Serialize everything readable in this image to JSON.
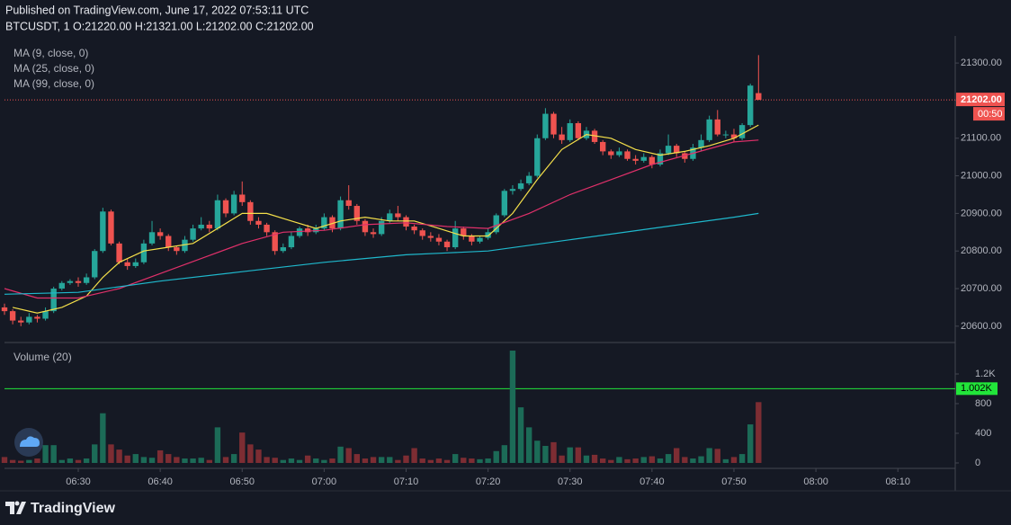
{
  "header": {
    "published": "Published on TradingView.com, June 17, 2022 07:53:11 UTC",
    "ohlc": "BTCUSDT, 1  O:21220.00 H:21321.00 L:21202.00 C:21202.00"
  },
  "footer": {
    "logo": "TradingView"
  },
  "chart_data": {
    "type": "candlestick",
    "x": [
      "06:21",
      "06:22",
      "06:23",
      "06:24",
      "06:25",
      "06:26",
      "06:27",
      "06:28",
      "06:29",
      "06:30",
      "06:31",
      "06:32",
      "06:33",
      "06:34",
      "06:35",
      "06:36",
      "06:37",
      "06:38",
      "06:39",
      "06:40",
      "06:41",
      "06:42",
      "06:43",
      "06:44",
      "06:45",
      "06:46",
      "06:47",
      "06:48",
      "06:49",
      "06:50",
      "06:51",
      "06:52",
      "06:53",
      "06:54",
      "06:55",
      "06:56",
      "06:57",
      "06:58",
      "06:59",
      "07:00",
      "07:01",
      "07:02",
      "07:03",
      "07:04",
      "07:05",
      "07:06",
      "07:07",
      "07:08",
      "07:09",
      "07:10",
      "07:11",
      "07:12",
      "07:13",
      "07:14",
      "07:15",
      "07:16",
      "07:17",
      "07:18",
      "07:19",
      "07:20",
      "07:21",
      "07:22",
      "07:23",
      "07:24",
      "07:25",
      "07:26",
      "07:27",
      "07:28",
      "07:29",
      "07:30",
      "07:31",
      "07:32",
      "07:33",
      "07:34",
      "07:35",
      "07:36",
      "07:37",
      "07:38",
      "07:39",
      "07:40",
      "07:41",
      "07:42",
      "07:43",
      "07:44",
      "07:45",
      "07:46",
      "07:47",
      "07:48",
      "07:49",
      "07:50",
      "07:51",
      "07:52",
      "07:53"
    ],
    "open": [
      20650,
      20640,
      20615,
      20610,
      20625,
      20620,
      20640,
      20700,
      20715,
      20720,
      20715,
      20730,
      20800,
      20905,
      20820,
      20770,
      20760,
      20770,
      20820,
      20850,
      20840,
      20810,
      20800,
      20830,
      20860,
      20870,
      20860,
      20935,
      20900,
      20950,
      20930,
      20880,
      20870,
      20850,
      20800,
      20810,
      20840,
      20860,
      20850,
      20860,
      20890,
      20860,
      20935,
      20920,
      20880,
      20850,
      20845,
      20880,
      20900,
      20890,
      20865,
      20855,
      20840,
      20835,
      20825,
      20810,
      20860,
      20840,
      20825,
      20835,
      20850,
      20895,
      20960,
      20965,
      20980,
      21000,
      21100,
      21165,
      21110,
      21095,
      21140,
      21100,
      21120,
      21090,
      21065,
      21055,
      21065,
      21045,
      21040,
      21050,
      21030,
      21060,
      21080,
      21060,
      21045,
      21075,
      21095,
      21150,
      21110,
      21110,
      21100,
      21135,
      21220
    ],
    "high": [
      20660,
      20645,
      20625,
      20635,
      20630,
      20650,
      20705,
      20720,
      20725,
      20730,
      20740,
      20805,
      20915,
      20910,
      20825,
      20780,
      20780,
      20830,
      20880,
      20860,
      20845,
      20815,
      20840,
      20870,
      20890,
      20880,
      20950,
      20940,
      20960,
      20985,
      20935,
      20890,
      20875,
      20855,
      20820,
      20850,
      20865,
      20870,
      20870,
      20900,
      20895,
      20945,
      20975,
      20925,
      20885,
      20860,
      20890,
      20910,
      20920,
      20895,
      20870,
      20860,
      20850,
      20845,
      20830,
      20880,
      20865,
      20845,
      20840,
      20860,
      20900,
      20965,
      20975,
      20990,
      21010,
      21110,
      21180,
      21170,
      21130,
      21150,
      21145,
      21130,
      21125,
      21095,
      21070,
      21075,
      21070,
      21055,
      21060,
      21055,
      21070,
      21110,
      21085,
      21065,
      21085,
      21110,
      21160,
      21175,
      21120,
      21125,
      21140,
      21245,
      21321
    ],
    "low": [
      20630,
      20605,
      20600,
      20605,
      20610,
      20615,
      20635,
      20695,
      20710,
      20705,
      20710,
      20725,
      20795,
      20815,
      20765,
      20750,
      20755,
      20765,
      20815,
      20830,
      20800,
      20790,
      20795,
      20825,
      20855,
      20850,
      20855,
      20890,
      20895,
      20920,
      20870,
      20860,
      20840,
      20790,
      20795,
      20805,
      20835,
      20840,
      20845,
      20855,
      20850,
      20855,
      20910,
      20870,
      20840,
      20835,
      20840,
      20875,
      20880,
      20855,
      20845,
      20830,
      20825,
      20815,
      20800,
      20805,
      20830,
      20815,
      20820,
      20830,
      20845,
      20890,
      20950,
      20960,
      20975,
      20995,
      21095,
      21100,
      21085,
      21090,
      21095,
      21095,
      21085,
      21055,
      21045,
      21050,
      21040,
      21030,
      21035,
      21020,
      21025,
      21055,
      21050,
      21035,
      21040,
      21065,
      21090,
      21105,
      21100,
      21090,
      21095,
      21130,
      21202
    ],
    "close": [
      20640,
      20615,
      20610,
      20625,
      20620,
      20640,
      20700,
      20715,
      20720,
      20715,
      20730,
      20800,
      20905,
      20820,
      20770,
      20760,
      20770,
      20820,
      20850,
      20840,
      20810,
      20800,
      20830,
      20860,
      20870,
      20860,
      20935,
      20900,
      20950,
      20930,
      20880,
      20870,
      20850,
      20800,
      20810,
      20840,
      20860,
      20850,
      20860,
      20890,
      20860,
      20935,
      20920,
      20880,
      20850,
      20845,
      20880,
      20900,
      20890,
      20865,
      20855,
      20840,
      20835,
      20825,
      20810,
      20860,
      20840,
      20825,
      20835,
      20850,
      20895,
      20960,
      20965,
      20980,
      21000,
      21100,
      21165,
      21110,
      21095,
      21140,
      21100,
      21120,
      21090,
      21065,
      21055,
      21065,
      21045,
      21040,
      21050,
      21030,
      21060,
      21080,
      21060,
      21045,
      21075,
      21095,
      21150,
      21110,
      21110,
      21100,
      21135,
      21240,
      21202
    ],
    "colors": {
      "up": "#26a69a",
      "down": "#ef5350"
    },
    "xlim": [
      "06:21",
      "08:17"
    ],
    "xticks": [
      "06:30",
      "06:40",
      "06:50",
      "07:00",
      "07:10",
      "07:20",
      "07:30",
      "07:40",
      "07:50",
      "08:00",
      "08:10"
    ],
    "ylim": [
      20559,
      21372
    ],
    "yticks": [
      {
        "value": 20600,
        "label": "20600.00"
      },
      {
        "value": 20700,
        "label": "20700.00"
      },
      {
        "value": 20800,
        "label": "20800.00"
      },
      {
        "value": 20900,
        "label": "20900.00"
      },
      {
        "value": 21000,
        "label": "21000.00"
      },
      {
        "value": 21100,
        "label": "21100.00"
      },
      {
        "value": 21200,
        "label": "21200.00"
      },
      {
        "value": 21300,
        "label": "21300.00"
      }
    ],
    "indicators": [
      {
        "name": "MA (9, close, 0)",
        "color": "#f5e04a",
        "x": [
          "06:22",
          "06:25",
          "06:28",
          "06:31",
          "06:33",
          "06:35",
          "06:38",
          "06:41",
          "06:44",
          "06:47",
          "06:50",
          "06:53",
          "06:56",
          "06:59",
          "07:02",
          "07:05",
          "07:08",
          "07:11",
          "07:14",
          "07:17",
          "07:20",
          "07:23",
          "07:26",
          "07:29",
          "07:32",
          "07:35",
          "07:38",
          "07:41",
          "07:44",
          "07:47",
          "07:50",
          "07:53"
        ],
        "values": [
          20650,
          20635,
          20650,
          20680,
          20730,
          20770,
          20800,
          20810,
          20820,
          20860,
          20900,
          20900,
          20880,
          20860,
          20880,
          20890,
          20880,
          20880,
          20860,
          20840,
          20840,
          20900,
          20990,
          21070,
          21110,
          21100,
          21070,
          21055,
          21065,
          21080,
          21100,
          21135
        ]
      },
      {
        "name": "MA (25, close, 0)",
        "color": "#e0306a",
        "x": [
          "06:21",
          "06:25",
          "06:30",
          "06:35",
          "06:40",
          "06:45",
          "06:50",
          "06:55",
          "07:00",
          "07:05",
          "07:10",
          "07:15",
          "07:20",
          "07:25",
          "07:30",
          "07:35",
          "07:40",
          "07:45",
          "07:50",
          "07:53"
        ],
        "values": [
          20700,
          20675,
          20675,
          20700,
          20740,
          20780,
          20820,
          20850,
          20855,
          20870,
          20875,
          20865,
          20860,
          20900,
          20950,
          20990,
          21030,
          21060,
          21090,
          21095
        ]
      },
      {
        "name": "MA (99, close, 0)",
        "color": "#1fb8cc",
        "x": [
          "06:21",
          "06:30",
          "06:40",
          "06:50",
          "07:00",
          "07:10",
          "07:15",
          "07:20",
          "07:30",
          "07:40",
          "07:50",
          "07:53"
        ],
        "values": [
          20685,
          20690,
          20720,
          20745,
          20770,
          20790,
          20795,
          20800,
          20830,
          20860,
          20890,
          20900
        ]
      }
    ],
    "last_price": {
      "value": 21202,
      "label": "21202.00"
    },
    "countdown": "00:50",
    "volume": {
      "name": "Volume (20)",
      "values": [
        80,
        40,
        30,
        40,
        60,
        240,
        240,
        40,
        60,
        40,
        60,
        250,
        670,
        250,
        180,
        100,
        120,
        80,
        70,
        170,
        120,
        80,
        60,
        60,
        70,
        40,
        480,
        80,
        120,
        410,
        250,
        180,
        80,
        70,
        40,
        60,
        40,
        100,
        60,
        40,
        60,
        220,
        200,
        120,
        60,
        80,
        80,
        80,
        40,
        100,
        200,
        60,
        40,
        60,
        40,
        120,
        70,
        60,
        50,
        60,
        160,
        240,
        1515,
        750,
        480,
        300,
        230,
        280,
        100,
        210,
        210,
        100,
        110,
        60,
        40,
        80,
        50,
        60,
        80,
        90,
        60,
        120,
        200,
        80,
        60,
        90,
        200,
        190,
        50,
        80,
        120,
        520,
        820
      ],
      "colors": {
        "up": "#1c6b57",
        "down": "#7d2d33"
      },
      "ylim": [
        -73,
        1612
      ],
      "yticks": [
        0,
        400,
        800,
        {
          "value": 1200,
          "label": "1.2K"
        }
      ],
      "line": {
        "value": 1002,
        "label": "1.002K"
      }
    }
  }
}
